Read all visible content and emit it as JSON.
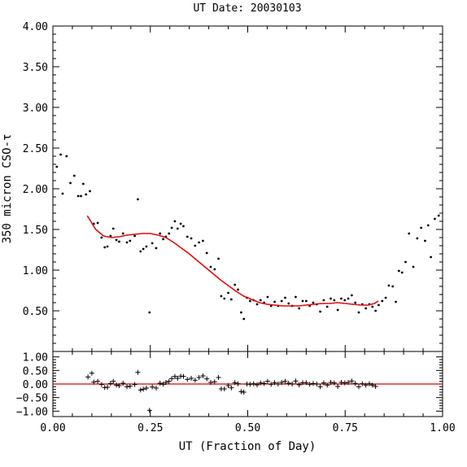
{
  "chart_data": {
    "title": "UT Date: 20030103",
    "xlabel": "UT (Fraction of Day)",
    "ylabel": "350 micron CSO-τ",
    "colors": {
      "fit": "#e00000",
      "data": "#000000"
    },
    "main_panel": {
      "type": "scatter",
      "xlim": [
        0,
        1
      ],
      "ylim": [
        0,
        4
      ],
      "x_ticks": [
        0,
        0.25,
        0.5,
        0.75,
        1
      ],
      "y_ticks": [
        0.5,
        1,
        1.5,
        2,
        2.5,
        3,
        3.5,
        4
      ],
      "y_tick_labels": [
        "0.50",
        "1.00",
        "1.50",
        "2.00",
        "2.50",
        "3.00",
        "3.50",
        "4.00"
      ],
      "points": [
        [
          0.01,
          2.27
        ],
        [
          0.02,
          2.42
        ],
        [
          0.025,
          1.94
        ],
        [
          0.035,
          2.4
        ],
        [
          0.045,
          2.07
        ],
        [
          0.055,
          2.16
        ],
        [
          0.065,
          1.91
        ],
        [
          0.072,
          1.91
        ],
        [
          0.078,
          2.06
        ],
        [
          0.085,
          1.93
        ],
        [
          0.095,
          1.97
        ],
        [
          0.105,
          1.57
        ],
        [
          0.115,
          1.58
        ],
        [
          0.125,
          1.4
        ],
        [
          0.133,
          1.28
        ],
        [
          0.14,
          1.29
        ],
        [
          0.148,
          1.42
        ],
        [
          0.155,
          1.51
        ],
        [
          0.163,
          1.37
        ],
        [
          0.17,
          1.35
        ],
        [
          0.18,
          1.45
        ],
        [
          0.19,
          1.34
        ],
        [
          0.198,
          1.36
        ],
        [
          0.21,
          1.42
        ],
        [
          0.218,
          1.87
        ],
        [
          0.225,
          1.23
        ],
        [
          0.232,
          1.26
        ],
        [
          0.24,
          1.29
        ],
        [
          0.248,
          0.48
        ],
        [
          0.255,
          1.33
        ],
        [
          0.265,
          1.27
        ],
        [
          0.275,
          1.45
        ],
        [
          0.283,
          1.38
        ],
        [
          0.29,
          1.41
        ],
        [
          0.298,
          1.45
        ],
        [
          0.305,
          1.52
        ],
        [
          0.313,
          1.6
        ],
        [
          0.32,
          1.51
        ],
        [
          0.328,
          1.57
        ],
        [
          0.335,
          1.54
        ],
        [
          0.345,
          1.41
        ],
        [
          0.355,
          1.39
        ],
        [
          0.365,
          1.3
        ],
        [
          0.375,
          1.34
        ],
        [
          0.385,
          1.36
        ],
        [
          0.395,
          1.21
        ],
        [
          0.405,
          1.04
        ],
        [
          0.415,
          1.01
        ],
        [
          0.425,
          1.14
        ],
        [
          0.432,
          0.68
        ],
        [
          0.44,
          0.65
        ],
        [
          0.45,
          0.72
        ],
        [
          0.458,
          0.64
        ],
        [
          0.467,
          0.82
        ],
        [
          0.475,
          0.76
        ],
        [
          0.483,
          0.48
        ],
        [
          0.49,
          0.4
        ],
        [
          0.498,
          0.66
        ],
        [
          0.506,
          0.62
        ],
        [
          0.515,
          0.63
        ],
        [
          0.524,
          0.58
        ],
        [
          0.533,
          0.63
        ],
        [
          0.542,
          0.6
        ],
        [
          0.551,
          0.67
        ],
        [
          0.56,
          0.56
        ],
        [
          0.569,
          0.61
        ],
        [
          0.578,
          0.56
        ],
        [
          0.587,
          0.62
        ],
        [
          0.596,
          0.66
        ],
        [
          0.605,
          0.59
        ],
        [
          0.614,
          0.56
        ],
        [
          0.623,
          0.67
        ],
        [
          0.632,
          0.53
        ],
        [
          0.641,
          0.62
        ],
        [
          0.65,
          0.62
        ],
        [
          0.659,
          0.56
        ],
        [
          0.668,
          0.6
        ],
        [
          0.677,
          0.58
        ],
        [
          0.686,
          0.49
        ],
        [
          0.695,
          0.63
        ],
        [
          0.704,
          0.55
        ],
        [
          0.713,
          0.65
        ],
        [
          0.722,
          0.63
        ],
        [
          0.731,
          0.51
        ],
        [
          0.74,
          0.65
        ],
        [
          0.749,
          0.63
        ],
        [
          0.758,
          0.65
        ],
        [
          0.767,
          0.69
        ],
        [
          0.776,
          0.6
        ],
        [
          0.785,
          0.48
        ],
        [
          0.794,
          0.58
        ],
        [
          0.803,
          0.53
        ],
        [
          0.812,
          0.58
        ],
        [
          0.82,
          0.55
        ],
        [
          0.828,
          0.5
        ],
        [
          0.836,
          0.57
        ],
        [
          0.845,
          0.62
        ],
        [
          0.854,
          0.66
        ],
        [
          0.862,
          0.81
        ],
        [
          0.872,
          0.8
        ],
        [
          0.88,
          0.61
        ],
        [
          0.888,
          0.99
        ],
        [
          0.896,
          0.97
        ],
        [
          0.905,
          1.1
        ],
        [
          0.914,
          1.45
        ],
        [
          0.925,
          1.04
        ],
        [
          0.935,
          1.39
        ],
        [
          0.945,
          1.52
        ],
        [
          0.955,
          1.36
        ],
        [
          0.963,
          1.55
        ],
        [
          0.97,
          1.16
        ],
        [
          0.98,
          1.63
        ],
        [
          0.99,
          1.67
        ]
      ],
      "fit_curve": {
        "x_range": [
          0.088,
          0.835
        ],
        "points": [
          [
            0.088,
            1.67
          ],
          [
            0.11,
            1.5
          ],
          [
            0.13,
            1.42
          ],
          [
            0.15,
            1.4
          ],
          [
            0.17,
            1.41
          ],
          [
            0.19,
            1.43
          ],
          [
            0.21,
            1.44
          ],
          [
            0.23,
            1.45
          ],
          [
            0.25,
            1.45
          ],
          [
            0.27,
            1.43
          ],
          [
            0.29,
            1.4
          ],
          [
            0.31,
            1.34
          ],
          [
            0.33,
            1.27
          ],
          [
            0.35,
            1.2
          ],
          [
            0.37,
            1.12
          ],
          [
            0.39,
            1.04
          ],
          [
            0.41,
            0.96
          ],
          [
            0.43,
            0.88
          ],
          [
            0.45,
            0.81
          ],
          [
            0.47,
            0.74
          ],
          [
            0.49,
            0.68
          ],
          [
            0.51,
            0.64
          ],
          [
            0.53,
            0.6
          ],
          [
            0.55,
            0.58
          ],
          [
            0.57,
            0.57
          ],
          [
            0.59,
            0.56
          ],
          [
            0.61,
            0.56
          ],
          [
            0.63,
            0.56
          ],
          [
            0.65,
            0.57
          ],
          [
            0.67,
            0.58
          ],
          [
            0.69,
            0.59
          ],
          [
            0.71,
            0.59
          ],
          [
            0.73,
            0.6
          ],
          [
            0.75,
            0.59
          ],
          [
            0.77,
            0.58
          ],
          [
            0.79,
            0.57
          ],
          [
            0.81,
            0.57
          ],
          [
            0.825,
            0.59
          ],
          [
            0.835,
            0.62
          ]
        ]
      }
    },
    "residual_panel": {
      "type": "scatter",
      "xlim": [
        0,
        1
      ],
      "ylim": [
        -1.2,
        1.2
      ],
      "y_ticks": [
        1,
        0.5,
        0,
        -0.5,
        -1
      ],
      "y_tick_labels": [
        "1.00",
        "0.50",
        "0.00",
        "−0.50",
        "−1.00"
      ],
      "x_tick_labels": [
        "0.00",
        "0.25",
        "0.50",
        "0.75",
        "1.00"
      ],
      "zero_line": 0,
      "points": [
        [
          0.09,
          0.26
        ],
        [
          0.1,
          0.4
        ],
        [
          0.105,
          0.07
        ],
        [
          0.115,
          0.1
        ],
        [
          0.125,
          -0.02
        ],
        [
          0.133,
          -0.13
        ],
        [
          0.14,
          -0.12
        ],
        [
          0.148,
          0.02
        ],
        [
          0.155,
          0.1
        ],
        [
          0.163,
          -0.04
        ],
        [
          0.17,
          -0.06
        ],
        [
          0.18,
          0.03
        ],
        [
          0.19,
          -0.1
        ],
        [
          0.198,
          -0.08
        ],
        [
          0.21,
          -0.02
        ],
        [
          0.218,
          0.43
        ],
        [
          0.225,
          -0.22
        ],
        [
          0.232,
          -0.19
        ],
        [
          0.24,
          -0.15
        ],
        [
          0.248,
          -0.97
        ],
        [
          0.255,
          -0.11
        ],
        [
          0.265,
          -0.15
        ],
        [
          0.275,
          0.03
        ],
        [
          0.283,
          -0.01
        ],
        [
          0.29,
          0.06
        ],
        [
          0.298,
          0.1
        ],
        [
          0.305,
          0.2
        ],
        [
          0.313,
          0.28
        ],
        [
          0.32,
          0.21
        ],
        [
          0.328,
          0.29
        ],
        [
          0.335,
          0.28
        ],
        [
          0.345,
          0.17
        ],
        [
          0.355,
          0.21
        ],
        [
          0.365,
          0.14
        ],
        [
          0.375,
          0.24
        ],
        [
          0.385,
          0.3
        ],
        [
          0.395,
          0.19
        ],
        [
          0.405,
          0.06
        ],
        [
          0.415,
          0.08
        ],
        [
          0.425,
          0.24
        ],
        [
          0.432,
          -0.18
        ],
        [
          0.44,
          -0.18
        ],
        [
          0.45,
          -0.06
        ],
        [
          0.458,
          -0.14
        ],
        [
          0.467,
          0.05
        ],
        [
          0.475,
          0.01
        ],
        [
          0.483,
          -0.28
        ],
        [
          0.49,
          -0.3
        ],
        [
          0.498,
          0.0
        ],
        [
          0.506,
          -0.01
        ],
        [
          0.515,
          0.01
        ],
        [
          0.524,
          -0.03
        ],
        [
          0.533,
          0.04
        ],
        [
          0.542,
          0.02
        ],
        [
          0.551,
          0.1
        ],
        [
          0.56,
          -0.01
        ],
        [
          0.569,
          0.05
        ],
        [
          0.578,
          0.0
        ],
        [
          0.587,
          0.06
        ],
        [
          0.596,
          0.1
        ],
        [
          0.605,
          0.03
        ],
        [
          0.614,
          0.0
        ],
        [
          0.623,
          0.11
        ],
        [
          0.632,
          -0.03
        ],
        [
          0.641,
          0.05
        ],
        [
          0.65,
          0.05
        ],
        [
          0.659,
          -0.01
        ],
        [
          0.668,
          0.02
        ],
        [
          0.677,
          0.0
        ],
        [
          0.686,
          -0.1
        ],
        [
          0.695,
          0.04
        ],
        [
          0.704,
          -0.04
        ],
        [
          0.713,
          0.06
        ],
        [
          0.722,
          0.04
        ],
        [
          0.731,
          -0.09
        ],
        [
          0.74,
          0.06
        ],
        [
          0.749,
          0.04
        ],
        [
          0.758,
          0.06
        ],
        [
          0.767,
          0.11
        ],
        [
          0.776,
          0.02
        ],
        [
          0.785,
          -0.1
        ],
        [
          0.794,
          0.01
        ],
        [
          0.803,
          -0.04
        ],
        [
          0.812,
          0.01
        ],
        [
          0.82,
          -0.04
        ],
        [
          0.828,
          -0.09
        ]
      ]
    }
  }
}
